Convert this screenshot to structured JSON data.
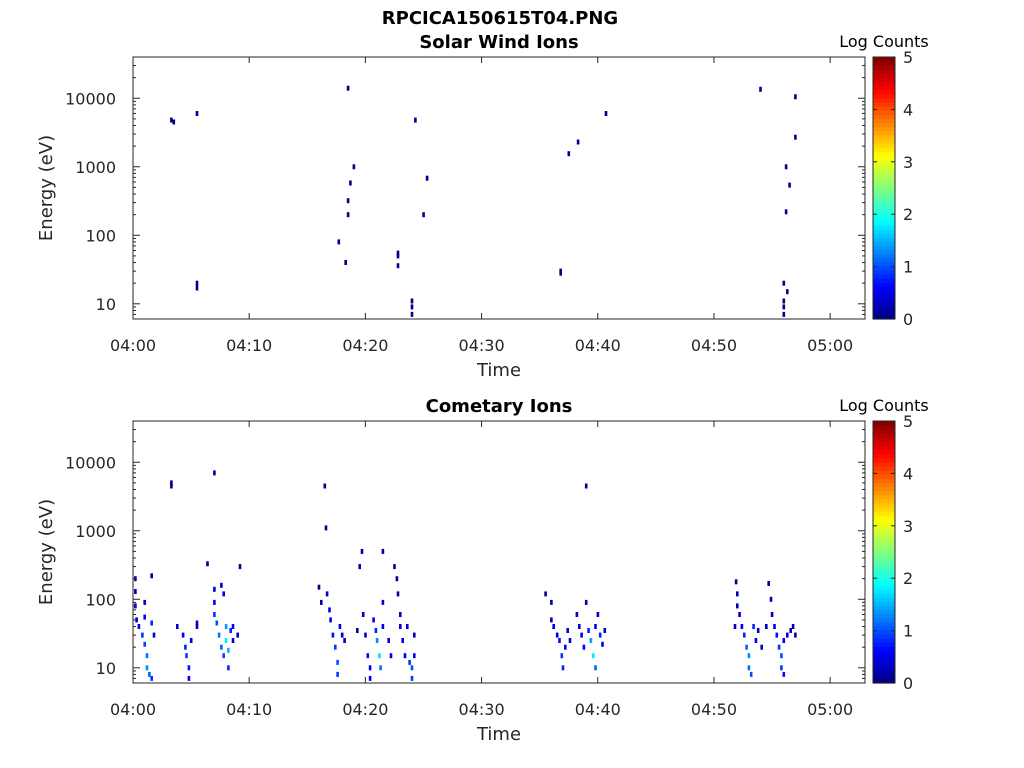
{
  "figure_title": "RPCICA150615T04.PNG",
  "colorbar": {
    "title": "Log Counts",
    "ticks": [
      "0",
      "1",
      "2",
      "3",
      "4",
      "5"
    ],
    "range": [
      0,
      5
    ],
    "colormap": "jet"
  },
  "chart_data": [
    {
      "type": "heatmap",
      "title": "Solar Wind Ions",
      "xlabel": "Time",
      "ylabel": "Energy (eV)",
      "xticks": [
        "04:00",
        "04:10",
        "04:20",
        "04:30",
        "04:40",
        "04:50",
        "05:00"
      ],
      "yticks": [
        "10",
        "100",
        "1000",
        "10000"
      ],
      "xlim_minutes": [
        0,
        63
      ],
      "yscale": "log",
      "ylim": [
        6,
        40000
      ],
      "points": [
        [
          3.3,
          4800,
          0.05
        ],
        [
          3.5,
          4500,
          0.05
        ],
        [
          5.5,
          6000,
          0.05
        ],
        [
          5.5,
          20,
          0.05
        ],
        [
          5.5,
          17,
          0.05
        ],
        [
          17.7,
          80,
          0.05
        ],
        [
          18.3,
          40,
          0.05
        ],
        [
          18.5,
          14000,
          0.05
        ],
        [
          18.5,
          320,
          0.05
        ],
        [
          18.5,
          200,
          0.05
        ],
        [
          18.7,
          580,
          0.05
        ],
        [
          19.0,
          1000,
          0.05
        ],
        [
          22.8,
          55,
          0.05
        ],
        [
          22.8,
          50,
          0.05
        ],
        [
          22.8,
          36,
          0.05
        ],
        [
          24.0,
          11,
          0.05
        ],
        [
          24.0,
          9,
          0.05
        ],
        [
          24.0,
          7,
          0.05
        ],
        [
          24.3,
          4800,
          0.05
        ],
        [
          25.0,
          200,
          0.05
        ],
        [
          25.3,
          680,
          0.05
        ],
        [
          36.8,
          30,
          0.1
        ],
        [
          36.8,
          28,
          0.1
        ],
        [
          37.5,
          1550,
          0.05
        ],
        [
          38.3,
          2300,
          0.05
        ],
        [
          40.7,
          6000,
          0.05
        ],
        [
          54.0,
          13500,
          0.05
        ],
        [
          56.0,
          20,
          0.05
        ],
        [
          56.0,
          11,
          0.05
        ],
        [
          56.0,
          9,
          0.05
        ],
        [
          56.0,
          7,
          0.05
        ],
        [
          56.2,
          1000,
          0.05
        ],
        [
          56.2,
          220,
          0.05
        ],
        [
          56.3,
          15,
          0.05
        ],
        [
          56.5,
          540,
          0.05
        ],
        [
          57.0,
          10500,
          0.05
        ],
        [
          57.0,
          2700,
          0.05
        ]
      ]
    },
    {
      "type": "heatmap",
      "title": "Cometary Ions",
      "xlabel": "Time",
      "ylabel": "Energy (eV)",
      "xticks": [
        "04:00",
        "04:10",
        "04:20",
        "04:30",
        "04:40",
        "04:50",
        "05:00"
      ],
      "yticks": [
        "10",
        "100",
        "1000",
        "10000"
      ],
      "xlim_minutes": [
        0,
        63
      ],
      "yscale": "log",
      "ylim": [
        6,
        40000
      ],
      "points": [
        [
          0.2,
          200,
          0.2
        ],
        [
          0.2,
          130,
          0.2
        ],
        [
          0.2,
          80,
          0.4
        ],
        [
          0.3,
          50,
          0.5
        ],
        [
          0.5,
          40,
          0.6
        ],
        [
          0.8,
          30,
          0.9
        ],
        [
          1.0,
          90,
          0.3
        ],
        [
          1.0,
          55,
          0.6
        ],
        [
          1.0,
          22,
          1.0
        ],
        [
          1.2,
          15,
          1.2
        ],
        [
          1.2,
          10,
          1.3
        ],
        [
          1.4,
          8,
          1.1
        ],
        [
          1.6,
          7,
          0.9
        ],
        [
          1.6,
          45,
          0.8
        ],
        [
          1.8,
          30,
          0.5
        ],
        [
          1.6,
          220,
          0.05
        ],
        [
          3.3,
          5000,
          0.1
        ],
        [
          3.3,
          4500,
          0.1
        ],
        [
          3.8,
          40,
          0.4
        ],
        [
          4.3,
          30,
          0.6
        ],
        [
          4.5,
          20,
          0.8
        ],
        [
          4.6,
          15,
          0.9
        ],
        [
          4.8,
          10,
          0.7
        ],
        [
          4.8,
          7,
          0.6
        ],
        [
          5.0,
          25,
          0.5
        ],
        [
          5.5,
          45,
          0.3
        ],
        [
          5.5,
          40,
          0.3
        ],
        [
          6.4,
          330,
          0.1
        ],
        [
          7.0,
          7000,
          0.1
        ],
        [
          7.0,
          140,
          0.4
        ],
        [
          7.0,
          90,
          0.6
        ],
        [
          7.0,
          60,
          0.9
        ],
        [
          7.2,
          45,
          1.0
        ],
        [
          7.4,
          30,
          1.2
        ],
        [
          7.6,
          20,
          1.1
        ],
        [
          7.6,
          160,
          0.3
        ],
        [
          7.8,
          15,
          1.0
        ],
        [
          7.8,
          120,
          0.5
        ],
        [
          8.0,
          40,
          1.4
        ],
        [
          8.0,
          25,
          1.8
        ],
        [
          8.2,
          10,
          0.8
        ],
        [
          8.2,
          18,
          1.5
        ],
        [
          8.4,
          35,
          0.8
        ],
        [
          8.6,
          40,
          0.6
        ],
        [
          8.6,
          25,
          0.4
        ],
        [
          9.0,
          30,
          0.3
        ],
        [
          9.2,
          300,
          0.05
        ],
        [
          16.0,
          150,
          0.1
        ],
        [
          16.2,
          90,
          0.2
        ],
        [
          16.5,
          4500,
          0.1
        ],
        [
          16.6,
          1100,
          0.1
        ],
        [
          16.7,
          120,
          0.4
        ],
        [
          16.9,
          70,
          0.5
        ],
        [
          17.0,
          50,
          0.6
        ],
        [
          17.2,
          30,
          0.7
        ],
        [
          17.4,
          20,
          0.9
        ],
        [
          17.6,
          12,
          1.0
        ],
        [
          17.6,
          8,
          0.9
        ],
        [
          17.8,
          40,
          0.6
        ],
        [
          18.0,
          30,
          0.4
        ],
        [
          18.2,
          25,
          0.3
        ],
        [
          19.3,
          35,
          0.2
        ],
        [
          19.5,
          300,
          0.2
        ],
        [
          19.7,
          500,
          0.1
        ],
        [
          19.8,
          60,
          0.3
        ],
        [
          20.0,
          30,
          0.5
        ],
        [
          20.2,
          15,
          0.7
        ],
        [
          20.4,
          10,
          0.6
        ],
        [
          20.4,
          7,
          0.5
        ],
        [
          20.7,
          50,
          0.5
        ],
        [
          20.9,
          35,
          0.8
        ],
        [
          21.0,
          25,
          1.3
        ],
        [
          21.2,
          15,
          1.7
        ],
        [
          21.3,
          10,
          1.2
        ],
        [
          21.5,
          40,
          0.5
        ],
        [
          21.5,
          90,
          0.3
        ],
        [
          21.5,
          500,
          0.1
        ],
        [
          22.0,
          25,
          0.6
        ],
        [
          22.2,
          15,
          0.4
        ],
        [
          22.5,
          300,
          0.1
        ],
        [
          22.7,
          200,
          0.2
        ],
        [
          22.8,
          120,
          0.2
        ],
        [
          23.0,
          60,
          0.3
        ],
        [
          23.0,
          40,
          0.4
        ],
        [
          23.2,
          25,
          0.5
        ],
        [
          23.4,
          15,
          0.5
        ],
        [
          23.6,
          40,
          0.4
        ],
        [
          23.8,
          12,
          0.9
        ],
        [
          24.0,
          10,
          1.0
        ],
        [
          24.0,
          7,
          0.9
        ],
        [
          24.2,
          15,
          0.6
        ],
        [
          24.2,
          30,
          0.3
        ],
        [
          35.5,
          120,
          0.1
        ],
        [
          36.0,
          90,
          0.2
        ],
        [
          36.0,
          50,
          0.3
        ],
        [
          36.2,
          40,
          0.4
        ],
        [
          36.5,
          30,
          0.5
        ],
        [
          36.7,
          25,
          0.7
        ],
        [
          36.9,
          15,
          0.9
        ],
        [
          37.0,
          10,
          0.8
        ],
        [
          37.2,
          20,
          0.6
        ],
        [
          37.4,
          35,
          0.4
        ],
        [
          37.6,
          25,
          0.5
        ],
        [
          38.2,
          60,
          0.3
        ],
        [
          38.4,
          40,
          0.4
        ],
        [
          38.6,
          30,
          0.5
        ],
        [
          38.8,
          20,
          0.6
        ],
        [
          39.0,
          4500,
          0.1
        ],
        [
          39.0,
          90,
          0.2
        ],
        [
          39.2,
          35,
          0.8
        ],
        [
          39.4,
          25,
          1.4
        ],
        [
          39.6,
          15,
          1.8
        ],
        [
          39.8,
          10,
          1.1
        ],
        [
          39.8,
          40,
          0.6
        ],
        [
          40.0,
          60,
          0.4
        ],
        [
          40.2,
          30,
          0.8
        ],
        [
          40.4,
          22,
          0.5
        ],
        [
          40.6,
          35,
          0.3
        ],
        [
          51.8,
          40,
          0.3
        ],
        [
          51.9,
          180,
          0.1
        ],
        [
          52.0,
          120,
          0.2
        ],
        [
          52.0,
          80,
          0.3
        ],
        [
          52.2,
          60,
          0.4
        ],
        [
          52.4,
          40,
          0.6
        ],
        [
          52.6,
          30,
          0.8
        ],
        [
          52.8,
          20,
          1.1
        ],
        [
          53.0,
          15,
          1.3
        ],
        [
          53.0,
          10,
          1.2
        ],
        [
          53.2,
          8,
          1.0
        ],
        [
          53.4,
          40,
          0.8
        ],
        [
          53.6,
          25,
          0.6
        ],
        [
          53.8,
          35,
          0.4
        ],
        [
          54.1,
          20,
          0.3
        ],
        [
          54.5,
          40,
          0.3
        ],
        [
          54.7,
          170,
          0.1
        ],
        [
          54.9,
          100,
          0.2
        ],
        [
          55.0,
          60,
          0.3
        ],
        [
          55.2,
          40,
          0.5
        ],
        [
          55.4,
          30,
          0.7
        ],
        [
          55.6,
          20,
          0.9
        ],
        [
          55.8,
          15,
          1.0
        ],
        [
          55.8,
          10,
          0.9
        ],
        [
          56.0,
          8,
          0.7
        ],
        [
          56.0,
          25,
          0.6
        ],
        [
          56.3,
          30,
          0.4
        ],
        [
          56.6,
          35,
          0.3
        ],
        [
          56.8,
          40,
          0.3
        ],
        [
          57.0,
          30,
          0.2
        ]
      ]
    }
  ]
}
